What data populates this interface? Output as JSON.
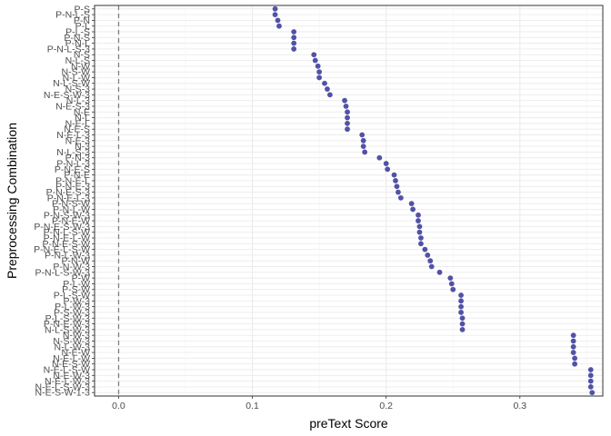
{
  "chart_data": {
    "type": "scatter",
    "xlabel": "preText Score",
    "ylabel": "Preprocessing Combination",
    "xlim": [
      -0.018,
      0.362
    ],
    "xticks": [
      0.0,
      0.1,
      0.2,
      0.3
    ],
    "xtick_labels": [
      "0.0",
      "0.1",
      "0.2",
      "0.3"
    ],
    "reference_line_x": 0.0,
    "grid": true,
    "legend": "none",
    "point_color": "#3f3f9f",
    "reference_line_color": "#7f7f7f",
    "categories": [
      "P-S",
      "P-N-L-S",
      "P-N",
      "P-L",
      "P-L-S",
      "P-N-S",
      "P-N-L",
      "P-N-L-S-3",
      "N-S",
      "N-L-S",
      "N-W",
      "N-S-W",
      "N-L-W",
      "N-L-S-W",
      "N-S-3",
      "N-E-S-W-3",
      "N-L-3",
      "N-E-S-3",
      "N-E",
      "N-L",
      "N-E-L",
      "N-E-S",
      "N-E-L-3",
      "N-E-3",
      "N-3",
      "N-L-S-3",
      "P-N-3",
      "P-N-L-3",
      "P-N-E-S",
      "P-N-E",
      "P-N-E-L",
      "P-N-E-3",
      "P-N-E-S-3",
      "P-N-E-L-3",
      "P-N-S-W",
      "P-N-L-W",
      "P-N-S-W-3",
      "P-N-E-W",
      "P-N-E-S-W-3",
      "P-N-L-S-W",
      "P-N-E-L-W",
      "P-N-E-S-W",
      "P-N-E-L-S-W",
      "P-N-L-W-3",
      "P-N-W",
      "P-N-W-3",
      "P-N-L-S-W-3",
      "P-W",
      "P-L-W",
      "P-S-W",
      "P-L-S-W",
      "P-W-3",
      "P-L-W-3",
      "P-S-W-3",
      "P-L-S-W-3",
      "P-N-E-W-3",
      "N-L-S-W-3",
      "N-W-3",
      "N-S-W-3",
      "N-L-W-3",
      "N-E-W",
      "N-E-L-W",
      "N-E-S-W",
      "N-E-L-S-W",
      "N-E-W-3",
      "N-E-L-W-3",
      "N-E-L-S-W-3",
      "N-E-S-W-1-3"
    ],
    "values": [
      0.117,
      0.117,
      0.119,
      0.12,
      0.131,
      0.131,
      0.131,
      0.131,
      0.146,
      0.147,
      0.149,
      0.15,
      0.15,
      0.154,
      0.156,
      0.158,
      0.169,
      0.17,
      0.171,
      0.171,
      0.171,
      0.171,
      0.182,
      0.183,
      0.183,
      0.184,
      0.195,
      0.2,
      0.201,
      0.206,
      0.207,
      0.208,
      0.209,
      0.211,
      0.219,
      0.22,
      0.224,
      0.224,
      0.225,
      0.225,
      0.226,
      0.226,
      0.229,
      0.231,
      0.233,
      0.234,
      0.24,
      0.248,
      0.249,
      0.25,
      0.256,
      0.256,
      0.256,
      0.256,
      0.257,
      0.257,
      0.257,
      0.34,
      0.34,
      0.34,
      0.34,
      0.341,
      0.341,
      0.353,
      0.353,
      0.353,
      0.353,
      0.354
    ]
  }
}
